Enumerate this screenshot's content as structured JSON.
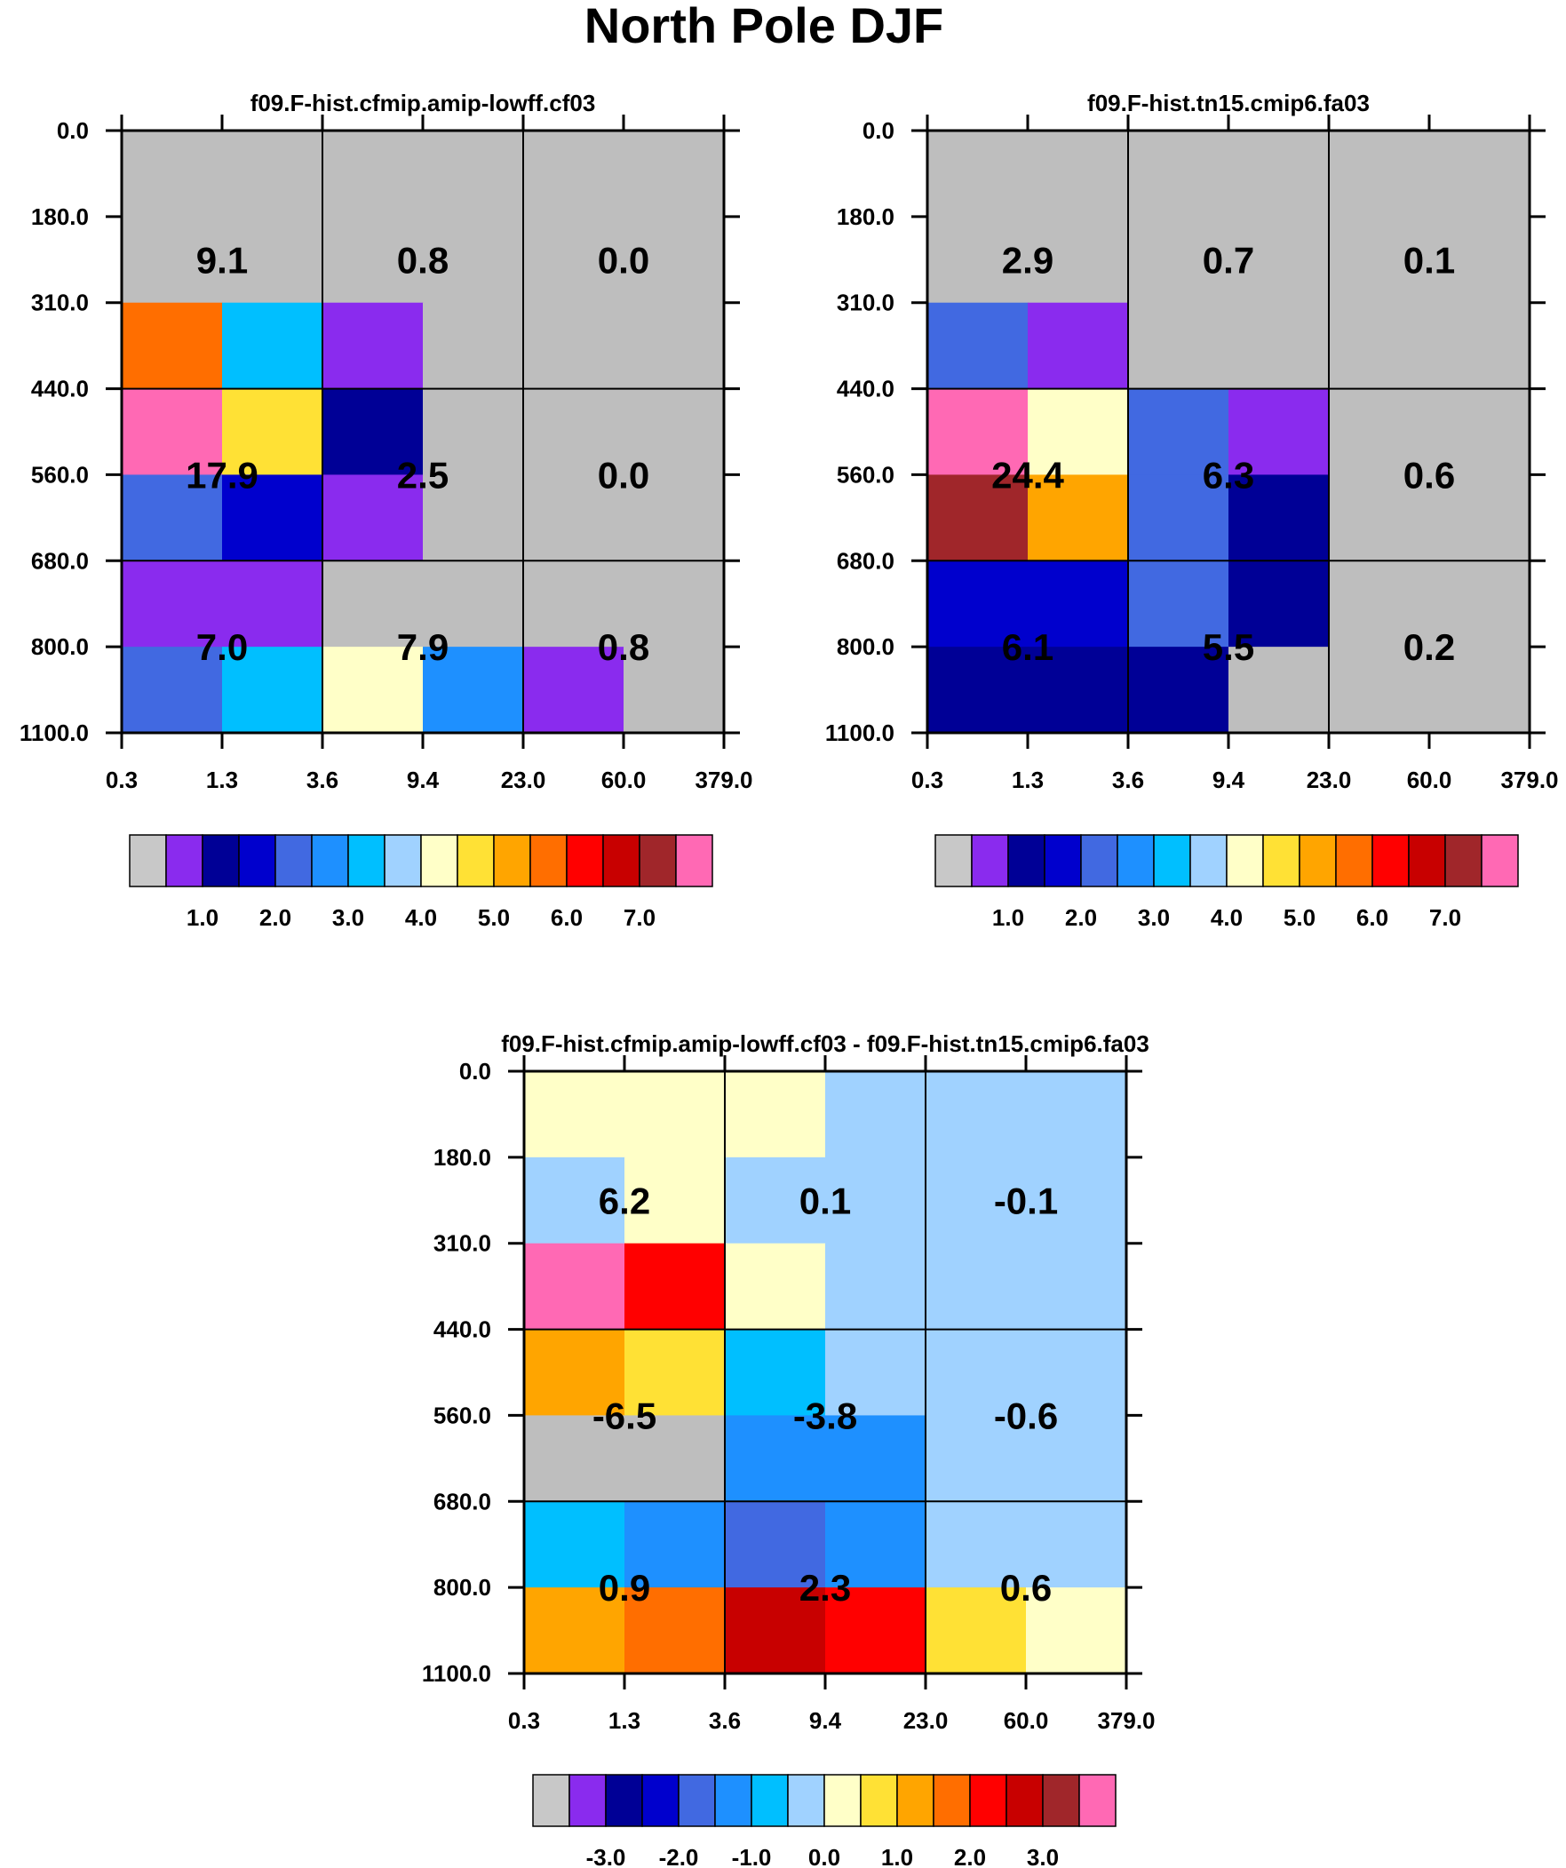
{
  "title": "North Pole DJF",
  "panels": [
    {
      "title": "f09.F-hist.cfmip.amip-lowff.cf03",
      "y_ticks": [
        "0.0",
        "180.0",
        "310.0",
        "440.0",
        "560.0",
        "680.0",
        "800.0",
        "1100.0"
      ],
      "x_ticks": [
        "0.3",
        "1.3",
        "3.6",
        "9.4",
        "23.0",
        "60.0",
        "379.0"
      ],
      "cells": [
        [
          "#BEBEBE",
          "#BEBEBE",
          "#BEBEBE",
          "#BEBEBE",
          "#BEBEBE",
          "#BEBEBE"
        ],
        [
          "#BEBEBE",
          "#BEBEBE",
          "#BEBEBE",
          "#BEBEBE",
          "#BEBEBE",
          "#BEBEBE"
        ],
        [
          "#FF6E00",
          "#00BFFF",
          "#8A2BEE",
          "#BEBEBE",
          "#BEBEBE",
          "#BEBEBE"
        ],
        [
          "#FF69B4",
          "#FFE135",
          "#000096",
          "#BEBEBE",
          "#BEBEBE",
          "#BEBEBE"
        ],
        [
          "#4169E1",
          "#0000CD",
          "#8A2BEE",
          "#BEBEBE",
          "#BEBEBE",
          "#BEBEBE"
        ],
        [
          "#8A2BEE",
          "#8A2BEE",
          "#BEBEBE",
          "#BEBEBE",
          "#BEBEBE",
          "#BEBEBE"
        ],
        [
          "#4169E1",
          "#00BFFF",
          "#FFFFC8",
          "#1E90FF",
          "#8A2BEE",
          "#BEBEBE"
        ]
      ],
      "bin_values": [
        [
          "9.1",
          "0.8",
          "0.0"
        ],
        [
          "17.9",
          "2.5",
          "0.0"
        ],
        [
          "7.0",
          "7.9",
          "0.8"
        ]
      ],
      "colorbar_labels": [
        "1.0",
        "2.0",
        "3.0",
        "4.0",
        "5.0",
        "6.0",
        "7.0"
      ]
    },
    {
      "title": "f09.F-hist.tn15.cmip6.fa03",
      "y_ticks": [
        "0.0",
        "180.0",
        "310.0",
        "440.0",
        "560.0",
        "680.0",
        "800.0",
        "1100.0"
      ],
      "x_ticks": [
        "0.3",
        "1.3",
        "3.6",
        "9.4",
        "23.0",
        "60.0",
        "379.0"
      ],
      "cells": [
        [
          "#BEBEBE",
          "#BEBEBE",
          "#BEBEBE",
          "#BEBEBE",
          "#BEBEBE",
          "#BEBEBE"
        ],
        [
          "#BEBEBE",
          "#BEBEBE",
          "#BEBEBE",
          "#BEBEBE",
          "#BEBEBE",
          "#BEBEBE"
        ],
        [
          "#4169E1",
          "#8A2BEE",
          "#BEBEBE",
          "#BEBEBE",
          "#BEBEBE",
          "#BEBEBE"
        ],
        [
          "#FF69B4",
          "#FFFFC8",
          "#4169E1",
          "#8A2BEE",
          "#BEBEBE",
          "#BEBEBE"
        ],
        [
          "#A0262A",
          "#FFA500",
          "#4169E1",
          "#000096",
          "#BEBEBE",
          "#BEBEBE"
        ],
        [
          "#0000CD",
          "#0000CD",
          "#4169E1",
          "#000096",
          "#BEBEBE",
          "#BEBEBE"
        ],
        [
          "#000096",
          "#000096",
          "#000096",
          "#BEBEBE",
          "#BEBEBE",
          "#BEBEBE"
        ]
      ],
      "bin_values": [
        [
          "2.9",
          "0.7",
          "0.1"
        ],
        [
          "24.4",
          "6.3",
          "0.6"
        ],
        [
          "6.1",
          "5.5",
          "0.2"
        ]
      ],
      "colorbar_labels": [
        "1.0",
        "2.0",
        "3.0",
        "4.0",
        "5.0",
        "6.0",
        "7.0"
      ]
    },
    {
      "title": "f09.F-hist.cfmip.amip-lowff.cf03 - f09.F-hist.tn15.cmip6.fa03",
      "y_ticks": [
        "0.0",
        "180.0",
        "310.0",
        "440.0",
        "560.0",
        "680.0",
        "800.0",
        "1100.0"
      ],
      "x_ticks": [
        "0.3",
        "1.3",
        "3.6",
        "9.4",
        "23.0",
        "60.0",
        "379.0"
      ],
      "cells": [
        [
          "#FFFFC8",
          "#FFFFC8",
          "#FFFFC8",
          "#A0D2FF",
          "#A0D2FF",
          "#A0D2FF"
        ],
        [
          "#A0D2FF",
          "#FFFFC8",
          "#A0D2FF",
          "#A0D2FF",
          "#A0D2FF",
          "#A0D2FF"
        ],
        [
          "#FF69B4",
          "#FF0000",
          "#FFFFC8",
          "#A0D2FF",
          "#A0D2FF",
          "#A0D2FF"
        ],
        [
          "#FFA500",
          "#FFE135",
          "#00BFFF",
          "#A0D2FF",
          "#A0D2FF",
          "#A0D2FF"
        ],
        [
          "#BEBEBE",
          "#BEBEBE",
          "#1E90FF",
          "#1E90FF",
          "#A0D2FF",
          "#A0D2FF"
        ],
        [
          "#00BFFF",
          "#1E90FF",
          "#4169E1",
          "#1E90FF",
          "#A0D2FF",
          "#A0D2FF"
        ],
        [
          "#FFA500",
          "#FF6E00",
          "#C80000",
          "#FF0000",
          "#FFE135",
          "#FFFFC8"
        ]
      ],
      "bin_values": [
        [
          "6.2",
          "0.1",
          "-0.1"
        ],
        [
          "-6.5",
          "-3.8",
          "-0.6"
        ],
        [
          "0.9",
          "2.3",
          "0.6"
        ]
      ],
      "colorbar_labels": [
        "-3.0",
        "-2.0",
        "-1.0",
        "0.0",
        "1.0",
        "2.0",
        "3.0"
      ]
    }
  ],
  "colorbar_colors": [
    "#C8C8C8",
    "#8A2BEE",
    "#000096",
    "#0000CD",
    "#4169E1",
    "#1E90FF",
    "#00BFFF",
    "#A0D2FF",
    "#FFFFC8",
    "#FFE135",
    "#FFA500",
    "#FF6E00",
    "#FF0000",
    "#C80000",
    "#A0262A",
    "#FF69B4"
  ],
  "chart_data": [
    {
      "type": "heatmap",
      "title": "f09.F-hist.cfmip.amip-lowff.cf03",
      "xlabel": "",
      "ylabel": "",
      "x_bin_edges": [
        0.3,
        1.3,
        3.6,
        9.4,
        23.0,
        60.0,
        379.0
      ],
      "y_bin_edges": [
        0.0,
        180.0,
        310.0,
        440.0,
        560.0,
        680.0,
        800.0,
        1100.0
      ],
      "grouped_totals": [
        [
          9.1,
          0.8,
          0.0
        ],
        [
          17.9,
          2.5,
          0.0
        ],
        [
          7.0,
          7.9,
          0.8
        ]
      ],
      "colorbar_ticks": [
        1.0,
        2.0,
        3.0,
        4.0,
        5.0,
        6.0,
        7.0
      ]
    },
    {
      "type": "heatmap",
      "title": "f09.F-hist.tn15.cmip6.fa03",
      "xlabel": "",
      "ylabel": "",
      "x_bin_edges": [
        0.3,
        1.3,
        3.6,
        9.4,
        23.0,
        60.0,
        379.0
      ],
      "y_bin_edges": [
        0.0,
        180.0,
        310.0,
        440.0,
        560.0,
        680.0,
        800.0,
        1100.0
      ],
      "grouped_totals": [
        [
          2.9,
          0.7,
          0.1
        ],
        [
          24.4,
          6.3,
          0.6
        ],
        [
          6.1,
          5.5,
          0.2
        ]
      ],
      "colorbar_ticks": [
        1.0,
        2.0,
        3.0,
        4.0,
        5.0,
        6.0,
        7.0
      ]
    },
    {
      "type": "heatmap",
      "title": "f09.F-hist.cfmip.amip-lowff.cf03 - f09.F-hist.tn15.cmip6.fa03",
      "xlabel": "",
      "ylabel": "",
      "x_bin_edges": [
        0.3,
        1.3,
        3.6,
        9.4,
        23.0,
        60.0,
        379.0
      ],
      "y_bin_edges": [
        0.0,
        180.0,
        310.0,
        440.0,
        560.0,
        680.0,
        800.0,
        1100.0
      ],
      "grouped_totals": [
        [
          6.2,
          0.1,
          -0.1
        ],
        [
          -6.5,
          -3.8,
          -0.6
        ],
        [
          0.9,
          2.3,
          0.6
        ]
      ],
      "colorbar_ticks": [
        -3.0,
        -2.0,
        -1.0,
        0.0,
        1.0,
        2.0,
        3.0
      ]
    }
  ]
}
